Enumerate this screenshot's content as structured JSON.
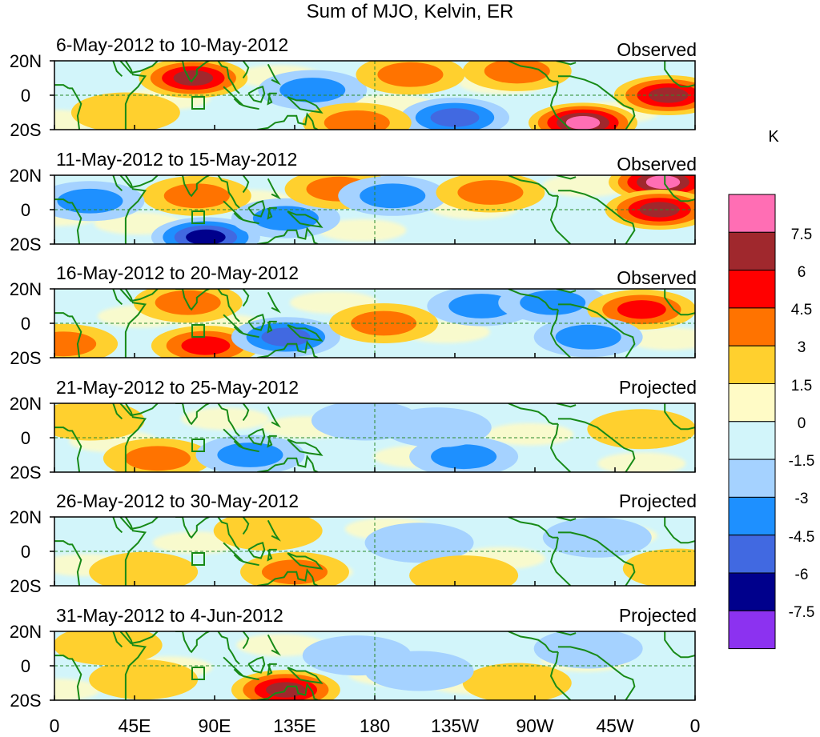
{
  "title": "Sum of MJO, Kelvin, ER",
  "panels": [
    {
      "date_range": "6-May-2012 to 10-May-2012",
      "kind": "Observed"
    },
    {
      "date_range": "11-May-2012 to 15-May-2012",
      "kind": "Observed"
    },
    {
      "date_range": "16-May-2012 to 20-May-2012",
      "kind": "Observed"
    },
    {
      "date_range": "21-May-2012 to 25-May-2012",
      "kind": "Projected"
    },
    {
      "date_range": "26-May-2012 to 30-May-2012",
      "kind": "Projected"
    },
    {
      "date_range": "31-May-2012 to 4-Jun-2012",
      "kind": "Projected"
    }
  ],
  "lat_labels": [
    "20N",
    "0",
    "20S"
  ],
  "lon_labels": [
    "0",
    "45E",
    "90E",
    "135E",
    "180",
    "135W",
    "90W",
    "45W",
    "0"
  ],
  "colorbar": {
    "unit": "K",
    "tick_labels": [
      "7.5",
      "6",
      "4.5",
      "3",
      "1.5",
      "0",
      "-1.5",
      "-3",
      "-4.5",
      "-6",
      "-7.5"
    ],
    "colors": [
      "#ff6eb4",
      "#a0282d",
      "#ff0000",
      "#ff7300",
      "#ffd02e",
      "#fffbc6",
      "#d2f5fa",
      "#a5d2ff",
      "#1e90ff",
      "#4169e1",
      "#00008c",
      "#8c32f0"
    ]
  },
  "panel_anomalies": [
    [
      {
        "lon": 78,
        "lat": 10,
        "value": 6.6
      },
      {
        "lon": 145,
        "lat": 3,
        "value": -3.5
      },
      {
        "lon": 200,
        "lat": 12,
        "value": 3.4
      },
      {
        "lon": 260,
        "lat": 14,
        "value": 4.2
      },
      {
        "lon": 297,
        "lat": -16,
        "value": 8.0
      },
      {
        "lon": 345,
        "lat": 0,
        "value": 6.0
      },
      {
        "lon": 225,
        "lat": -13,
        "value": -5.5
      },
      {
        "lon": 40,
        "lat": -10,
        "value": 2.2
      },
      {
        "lon": 170,
        "lat": -16,
        "value": 4.0
      }
    ],
    [
      {
        "lon": 80,
        "lat": 8,
        "value": 3.6
      },
      {
        "lon": 85,
        "lat": -16,
        "value": -6.2
      },
      {
        "lon": 130,
        "lat": -5,
        "value": -4.0
      },
      {
        "lon": 160,
        "lat": 12,
        "value": 3.5
      },
      {
        "lon": 190,
        "lat": 8,
        "value": -4.2
      },
      {
        "lon": 245,
        "lat": 10,
        "value": 3.0
      },
      {
        "lon": 342,
        "lat": 16,
        "value": 8.0
      },
      {
        "lon": 340,
        "lat": 0,
        "value": 6.4
      },
      {
        "lon": 20,
        "lat": 5,
        "value": -3.0
      }
    ],
    [
      {
        "lon": 75,
        "lat": 12,
        "value": 3.8
      },
      {
        "lon": 85,
        "lat": -13,
        "value": 5.0
      },
      {
        "lon": 130,
        "lat": -8,
        "value": -4.5
      },
      {
        "lon": 185,
        "lat": 0,
        "value": 3.2
      },
      {
        "lon": 240,
        "lat": 10,
        "value": -4.0
      },
      {
        "lon": 280,
        "lat": 12,
        "value": -4.0
      },
      {
        "lon": 330,
        "lat": 8,
        "value": 5.0
      },
      {
        "lon": 300,
        "lat": -8,
        "value": -4.2
      },
      {
        "lon": 5,
        "lat": -12,
        "value": 3.5
      }
    ],
    [
      {
        "lon": 58,
        "lat": -12,
        "value": 4.2
      },
      {
        "lon": 110,
        "lat": -10,
        "value": -3.0
      },
      {
        "lon": 175,
        "lat": 10,
        "value": -2.0
      },
      {
        "lon": 230,
        "lat": -11,
        "value": -4.0
      },
      {
        "lon": 215,
        "lat": 6,
        "value": -2.5
      },
      {
        "lon": 330,
        "lat": 5,
        "value": 1.8
      },
      {
        "lon": 20,
        "lat": 10,
        "value": 2.0
      }
    ],
    [
      {
        "lon": 50,
        "lat": -12,
        "value": 2.2
      },
      {
        "lon": 135,
        "lat": -12,
        "value": 3.8
      },
      {
        "lon": 120,
        "lat": 12,
        "value": 1.8
      },
      {
        "lon": 205,
        "lat": 5,
        "value": -2.5
      },
      {
        "lon": 305,
        "lat": 8,
        "value": -2.2
      },
      {
        "lon": 230,
        "lat": -14,
        "value": 1.7
      },
      {
        "lon": 350,
        "lat": -10,
        "value": 1.8
      }
    ],
    [
      {
        "lon": 130,
        "lat": -14,
        "value": 6.4
      },
      {
        "lon": 50,
        "lat": -8,
        "value": 2.0
      },
      {
        "lon": 30,
        "lat": 12,
        "value": 2.0
      },
      {
        "lon": 170,
        "lat": 6,
        "value": -2.0
      },
      {
        "lon": 260,
        "lat": -10,
        "value": 1.8
      },
      {
        "lon": 300,
        "lat": 10,
        "value": -1.8
      },
      {
        "lon": 205,
        "lat": -3,
        "value": -2.0
      }
    ]
  ]
}
